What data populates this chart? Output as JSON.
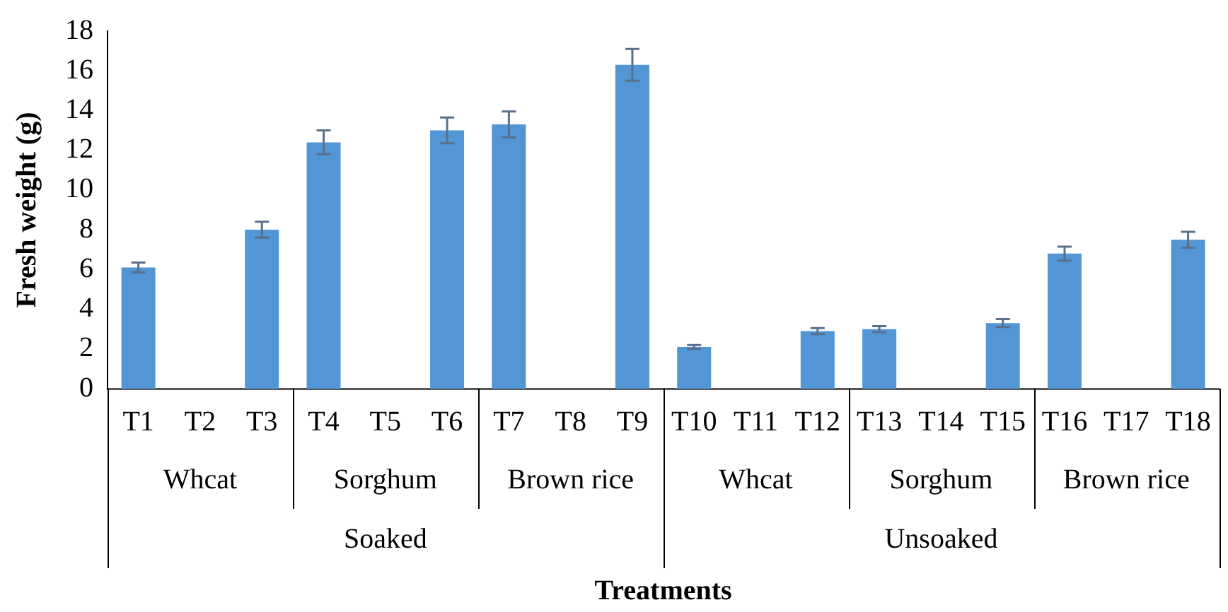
{
  "chart_data": {
    "type": "bar",
    "xlabel": "Treatments",
    "ylabel": "Fresh weight (g)",
    "categories": [
      "T1",
      "T2",
      "T3",
      "T4",
      "T5",
      "T6",
      "T7",
      "T8",
      "T9",
      "T10",
      "T11",
      "T12",
      "T13",
      "T14",
      "T15",
      "T16",
      "T17",
      "T18"
    ],
    "values": [
      6.1,
      0,
      8.0,
      12.4,
      0,
      13.0,
      13.3,
      0,
      16.3,
      2.1,
      0,
      2.9,
      3.0,
      0,
      3.3,
      6.8,
      0,
      7.5
    ],
    "errors": [
      0.25,
      null,
      0.4,
      0.6,
      null,
      0.65,
      0.65,
      null,
      0.8,
      0.1,
      null,
      0.15,
      0.15,
      null,
      0.2,
      0.35,
      null,
      0.4
    ],
    "color": "#5296d5",
    "ylim": [
      0,
      18
    ],
    "yticks": [
      0,
      2,
      4,
      6,
      8,
      10,
      12,
      14,
      16,
      18
    ],
    "grid": false,
    "annotations": [
      "Whcat",
      "Sorghum",
      "Brown rice",
      "Whcat",
      "Sorghum",
      "Brown rice",
      "Soaked",
      "Unsoaked"
    ]
  }
}
